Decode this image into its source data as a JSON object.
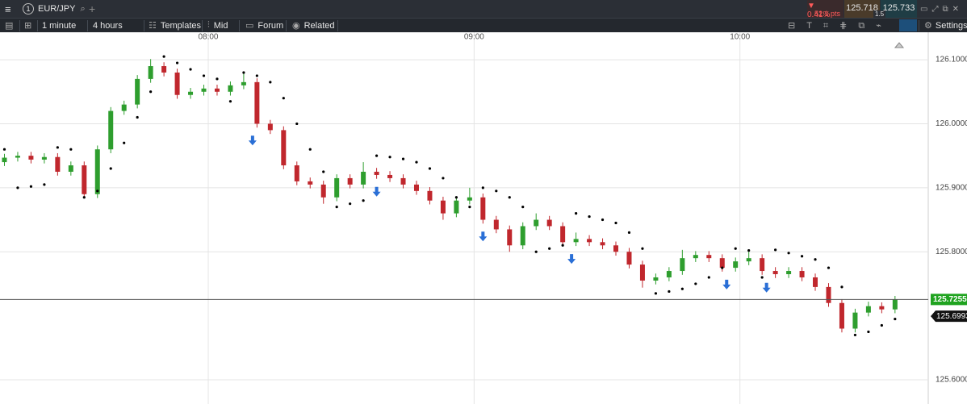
{
  "header": {
    "tab_number": "1",
    "symbol": "EUR/JPY",
    "change_percent": "0.41%",
    "change_points": "52.1 pts",
    "bid": "125.718",
    "ask": "125.733",
    "spread": "1.5"
  },
  "toolbar": {
    "interval": "1 minute",
    "range": "4 hours",
    "templates": "Templates",
    "price_type": "Mid",
    "forum": "Forum",
    "related": "Related",
    "settings": "Settings"
  },
  "chart_data": {
    "type": "candlestick",
    "x": [
      1,
      4,
      7,
      10,
      13,
      16,
      19,
      22,
      25,
      28,
      31,
      34,
      37,
      40,
      43,
      46,
      49,
      52,
      55,
      58,
      61,
      64,
      67,
      70,
      73,
      76,
      79,
      82,
      85,
      88,
      91,
      94,
      97,
      100,
      103,
      106,
      109,
      112,
      115,
      118,
      121,
      124,
      127,
      130,
      133,
      136,
      139,
      142,
      145,
      148,
      151,
      154,
      157,
      160,
      163,
      166,
      169,
      172,
      175,
      178,
      181,
      184,
      187,
      190,
      193,
      196,
      199,
      202
    ],
    "open": [
      125.94,
      125.947,
      125.95,
      125.944,
      125.948,
      125.925,
      125.935,
      125.89,
      125.96,
      126.02,
      126.03,
      126.07,
      126.09,
      126.08,
      126.045,
      126.05,
      126.055,
      126.05,
      126.06,
      126.065,
      126.0,
      125.99,
      125.935,
      125.91,
      125.905,
      125.885,
      125.915,
      125.905,
      125.925,
      125.92,
      125.915,
      125.905,
      125.895,
      125.88,
      125.86,
      125.88,
      125.885,
      125.85,
      125.835,
      125.81,
      125.84,
      125.85,
      125.84,
      125.815,
      125.82,
      125.815,
      125.81,
      125.8,
      125.78,
      125.755,
      125.76,
      125.77,
      125.79,
      125.795,
      125.79,
      125.775,
      125.785,
      125.79,
      125.77,
      125.765,
      125.77,
      125.76,
      125.745,
      125.72,
      125.68,
      125.705,
      125.715,
      125.71
    ],
    "high": [
      125.953,
      125.956,
      125.956,
      125.954,
      125.954,
      125.941,
      125.941,
      125.966,
      126.026,
      126.036,
      126.076,
      126.101,
      126.096,
      126.086,
      126.056,
      126.061,
      126.061,
      126.066,
      126.08,
      126.071,
      126.006,
      125.996,
      125.941,
      125.916,
      125.911,
      125.921,
      125.921,
      125.94,
      125.931,
      125.926,
      125.921,
      125.911,
      125.901,
      125.886,
      125.886,
      125.9,
      125.891,
      125.856,
      125.841,
      125.846,
      125.86,
      125.856,
      125.846,
      125.83,
      125.826,
      125.821,
      125.816,
      125.806,
      125.786,
      125.766,
      125.776,
      125.803,
      125.801,
      125.801,
      125.796,
      125.791,
      125.8,
      125.796,
      125.776,
      125.776,
      125.776,
      125.766,
      125.751,
      125.726,
      125.711,
      125.722,
      125.721,
      125.731
    ],
    "low": [
      125.934,
      125.941,
      125.938,
      125.938,
      125.919,
      125.919,
      125.884,
      125.884,
      125.954,
      126.014,
      126.024,
      126.064,
      126.074,
      126.039,
      126.039,
      126.044,
      126.044,
      126.044,
      126.054,
      125.994,
      125.984,
      125.929,
      125.904,
      125.899,
      125.875,
      125.879,
      125.899,
      125.899,
      125.914,
      125.909,
      125.899,
      125.889,
      125.874,
      125.85,
      125.854,
      125.874,
      125.844,
      125.829,
      125.8,
      125.804,
      125.834,
      125.834,
      125.809,
      125.809,
      125.809,
      125.804,
      125.794,
      125.774,
      125.744,
      125.749,
      125.754,
      125.764,
      125.784,
      125.784,
      125.769,
      125.769,
      125.779,
      125.764,
      125.759,
      125.759,
      125.754,
      125.739,
      125.714,
      125.674,
      125.674,
      125.699,
      125.704,
      125.704
    ],
    "close": [
      125.947,
      125.95,
      125.944,
      125.948,
      125.925,
      125.935,
      125.89,
      125.96,
      126.02,
      126.03,
      126.07,
      126.09,
      126.08,
      126.045,
      126.05,
      126.055,
      126.05,
      126.06,
      126.065,
      126.0,
      125.99,
      125.935,
      125.91,
      125.905,
      125.885,
      125.915,
      125.905,
      125.925,
      125.92,
      125.915,
      125.905,
      125.895,
      125.88,
      125.86,
      125.88,
      125.885,
      125.85,
      125.835,
      125.81,
      125.84,
      125.85,
      125.84,
      125.815,
      125.82,
      125.815,
      125.81,
      125.8,
      125.78,
      125.755,
      125.76,
      125.77,
      125.79,
      125.795,
      125.79,
      125.775,
      125.785,
      125.79,
      125.77,
      125.765,
      125.77,
      125.76,
      125.745,
      125.72,
      125.68,
      125.705,
      125.715,
      125.71,
      125.7255
    ],
    "sar": [
      125.96,
      125.9,
      125.902,
      125.905,
      125.963,
      125.96,
      125.885,
      125.895,
      125.93,
      125.97,
      126.01,
      126.05,
      126.105,
      126.095,
      126.085,
      126.075,
      126.07,
      126.035,
      126.08,
      126.075,
      126.065,
      126.04,
      126.0,
      125.96,
      125.925,
      125.87,
      125.875,
      125.88,
      125.95,
      125.948,
      125.945,
      125.94,
      125.93,
      125.915,
      125.885,
      125.87,
      125.9,
      125.895,
      125.885,
      125.87,
      125.8,
      125.805,
      125.81,
      125.86,
      125.855,
      125.85,
      125.845,
      125.83,
      125.805,
      125.735,
      125.738,
      125.742,
      125.75,
      125.76,
      125.775,
      125.805,
      125.802,
      125.76,
      125.803,
      125.798,
      125.793,
      125.788,
      125.775,
      125.745,
      125.67,
      125.675,
      125.685,
      125.695
    ],
    "signals": [
      57,
      85,
      109,
      129,
      164,
      173
    ],
    "up_color": "#2e9e2e",
    "down_color": "#c0272d",
    "sar_color": "#000000",
    "signal_color": "#2a6fd6",
    "xlim": [
      0,
      209.5
    ],
    "xticks": [
      {
        "value": 47,
        "label": "08:00"
      },
      {
        "value": 107,
        "label": "09:00"
      },
      {
        "value": 167,
        "label": "10:00"
      }
    ],
    "ylim": [
      125.5622,
      126.1404
    ],
    "yticks": [
      {
        "value": 125.6,
        "label": "125.6000"
      },
      {
        "value": 125.8,
        "label": "125.8000"
      },
      {
        "value": 125.9,
        "label": "125.9000"
      },
      {
        "value": 126.0,
        "label": "126.0000"
      },
      {
        "value": 126.1,
        "label": "126.1000"
      }
    ],
    "grid": true,
    "last_price": {
      "value": 125.7255,
      "label": "125.7255",
      "color": "#1fa31f"
    },
    "sar_price": {
      "value": 125.6993,
      "label": "125.6993",
      "color": "#111111"
    }
  }
}
